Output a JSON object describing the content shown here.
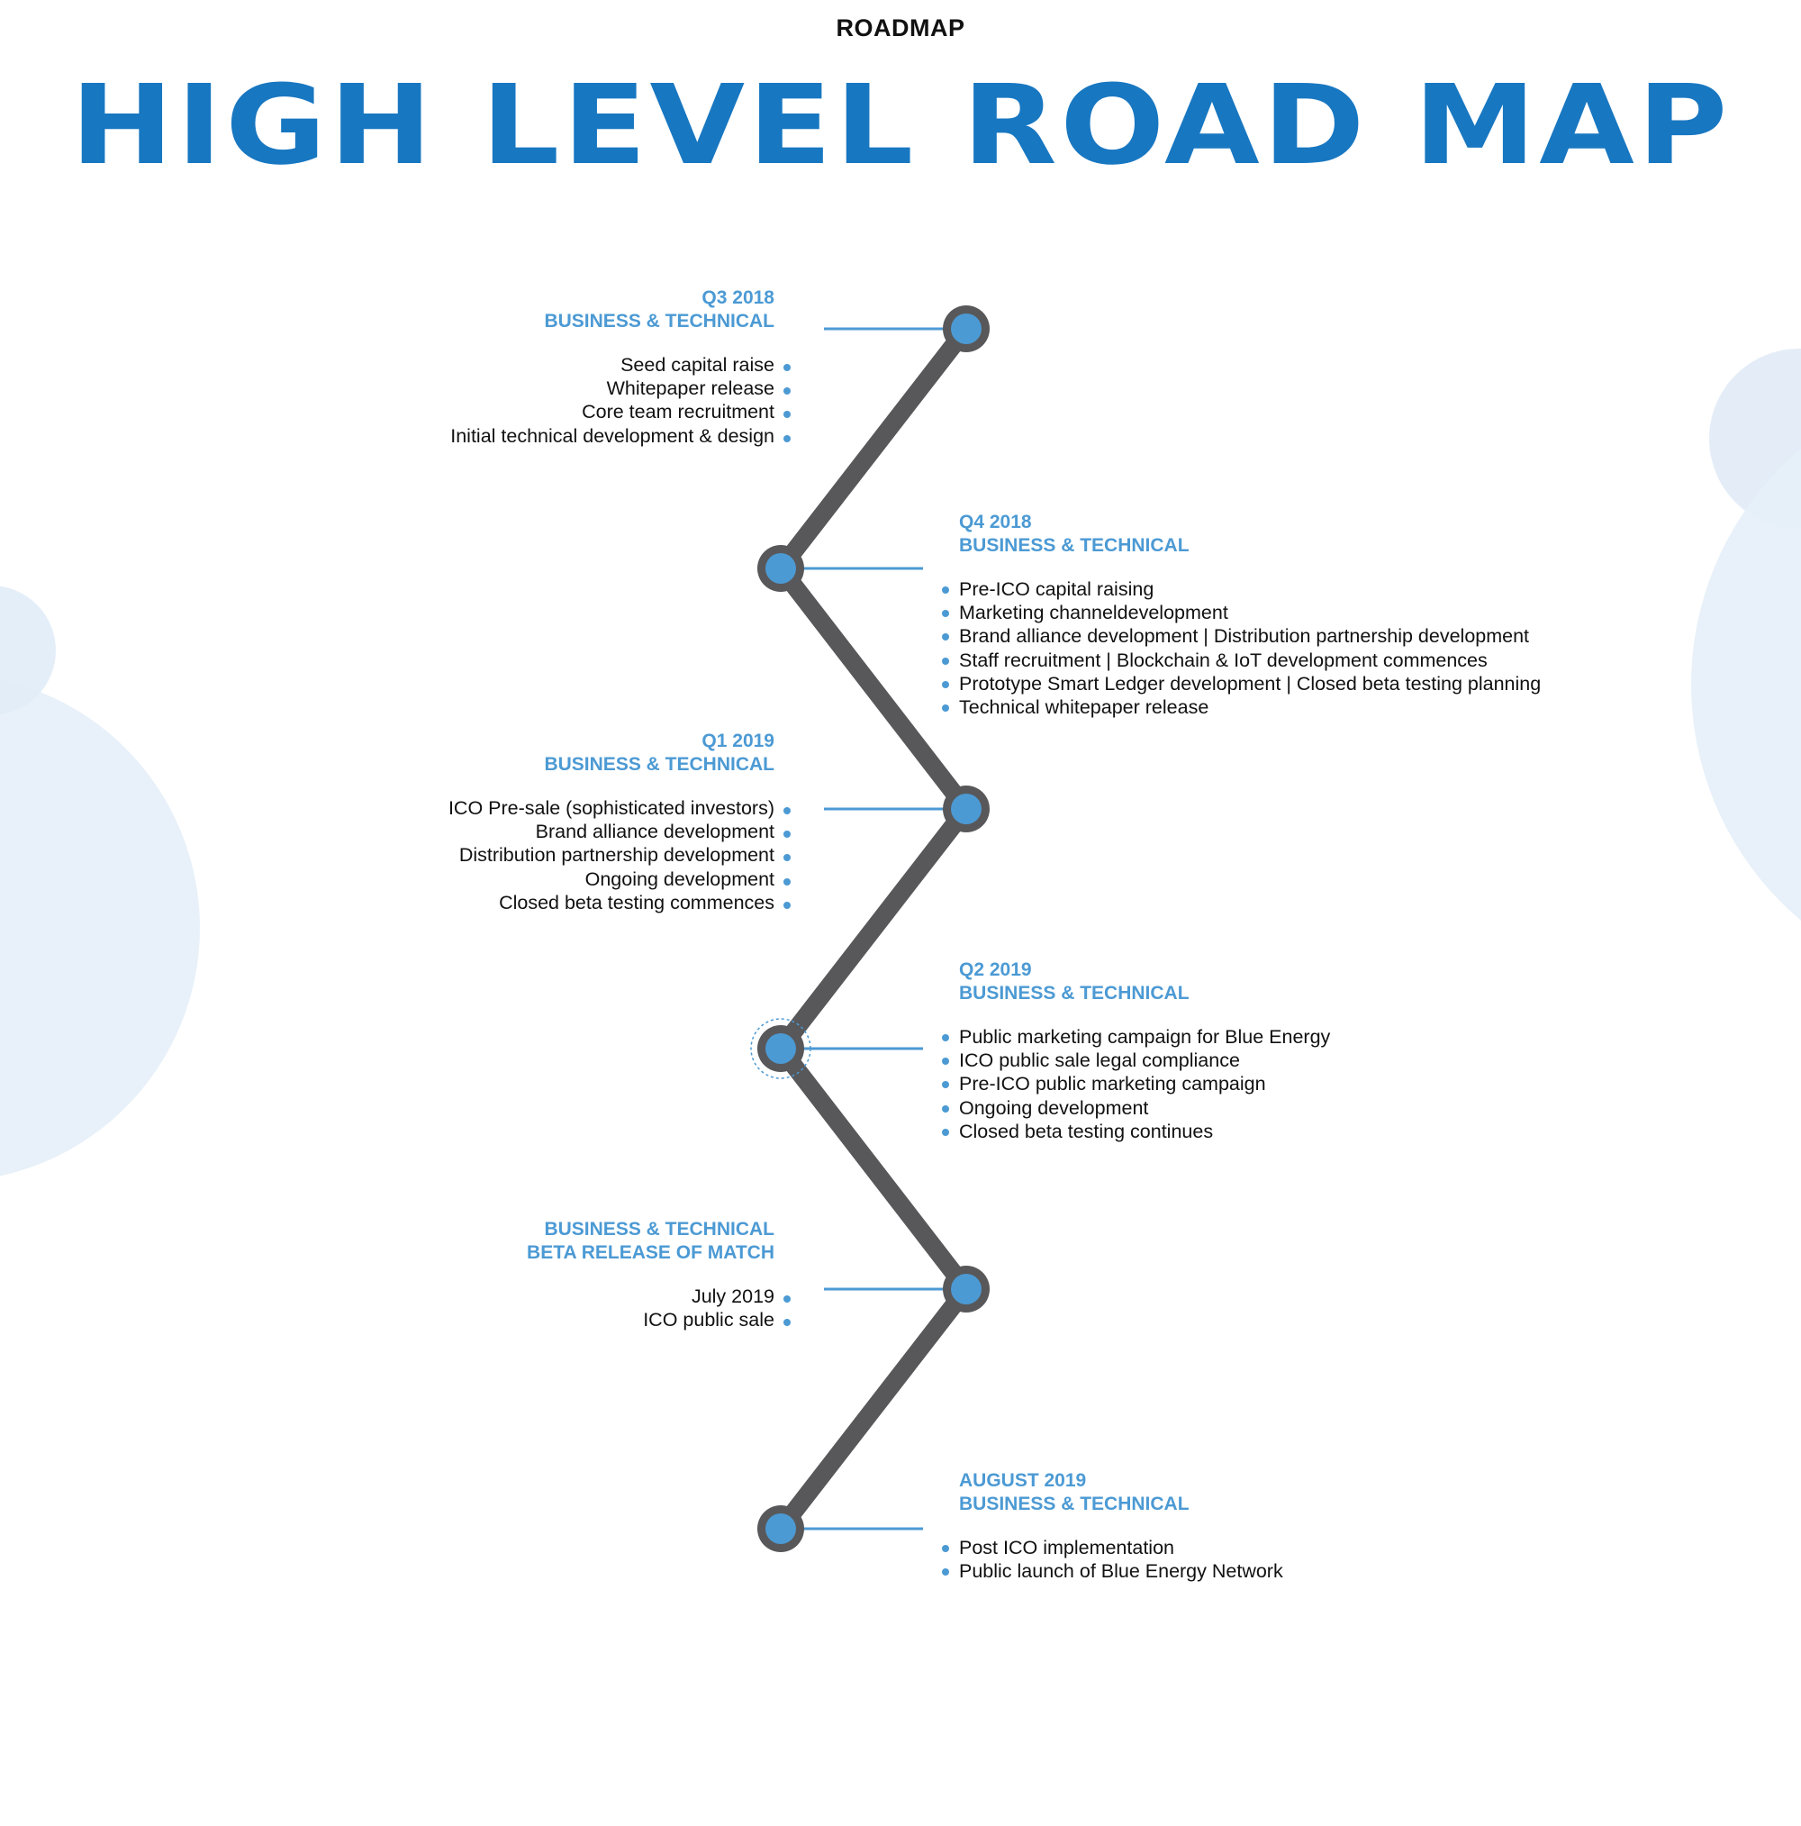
{
  "header": {
    "section_label": "ROADMAP",
    "title": "HIGH LEVEL ROAD MAP"
  },
  "colors": {
    "title_blue": "#1877c1",
    "accent_blue": "#4c9ad4",
    "timeline_gray": "#58585a",
    "bubble_blue": "#dce9f5"
  },
  "milestones": [
    {
      "period": "Q3 2018",
      "category": "BUSINESS & TECHNICAL",
      "items": [
        "Seed capital raise",
        "Whitepaper release",
        "Core team recruitment",
        "Initial technical development & design"
      ]
    },
    {
      "period": "Q4 2018",
      "category": "BUSINESS & TECHNICAL",
      "items": [
        "Pre-ICO capital raising",
        "Marketing channeldevelopment",
        "Brand alliance development | Distribution partnership development",
        "Staff recruitment | Blockchain & IoT development commences",
        "Prototype Smart Ledger development | Closed beta testing planning",
        "Technical whitepaper release"
      ]
    },
    {
      "period": "Q1 2019",
      "category": "BUSINESS & TECHNICAL",
      "items": [
        "ICO Pre-sale (sophisticated investors)",
        "Brand alliance development",
        "Distribution partnership development",
        "Ongoing development",
        "Closed beta testing commences"
      ]
    },
    {
      "period": "Q2 2019",
      "category": "BUSINESS & TECHNICAL",
      "items": [
        "Public marketing campaign for Blue Energy",
        "ICO public sale legal compliance",
        "Pre-ICO public marketing campaign",
        "Ongoing development",
        "Closed beta testing continues"
      ]
    },
    {
      "period": "BUSINESS & TECHNICAL",
      "category": "BETA RELEASE OF MATCH",
      "items": [
        "July 2019",
        "ICO public sale"
      ]
    },
    {
      "period": "AUGUST 2019",
      "category": "BUSINESS & TECHNICAL",
      "items": [
        "Post ICO implementation",
        "Public launch of Blue Energy Network"
      ]
    }
  ]
}
